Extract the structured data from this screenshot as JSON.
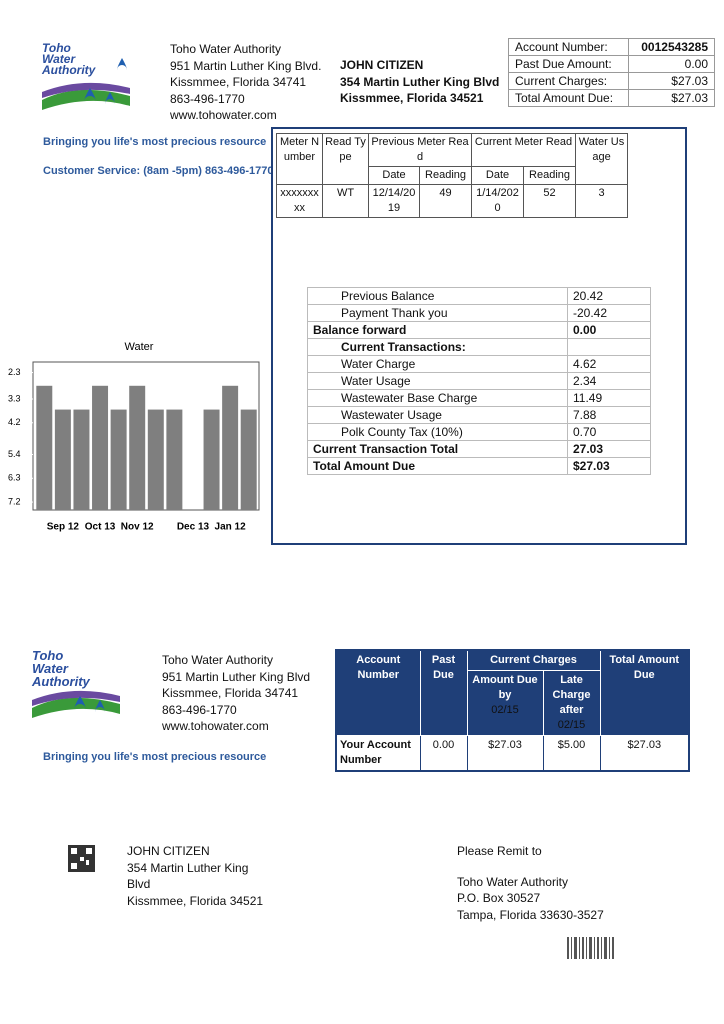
{
  "logo": [
    "Toho",
    "Water",
    "Authority"
  ],
  "company": {
    "name": "Toho Water Authority",
    "address1": "951 Martin Luther King Blvd.",
    "address2": "Kissmmee, Florida 34741",
    "phone": "863-496-1770",
    "web": "www.tohowater.com"
  },
  "customer": {
    "name": "JOHN CITIZEN",
    "address1": "354 Martin Luther King Blvd",
    "address2": "Kissmmee, Florida  34521"
  },
  "account_summary": [
    [
      "Account Number:",
      "0012543285"
    ],
    [
      "Past Due Amount:",
      "0.00"
    ],
    [
      "Current Charges:",
      "$27.03"
    ],
    [
      "Total Amount Due:",
      "$27.03"
    ]
  ],
  "tagline": "Bringing you life's most precious resource",
  "customer_service": "Customer Service: (8am -5pm) 863-496-1770",
  "meter_table": {
    "headers": {
      "meter_number": "Meter Number",
      "read_type": "Read Type",
      "previous": "Previous Meter Read",
      "current": "Current Meter Read",
      "usage": "Water Usage",
      "date": "Date",
      "reading": "Reading"
    },
    "row": [
      "xxxxxxxxx",
      "WT",
      "12/14/2019",
      "49",
      "1/14/2020",
      "52",
      "3"
    ]
  },
  "transactions": [
    {
      "label": "Previous Balance",
      "value": "20.42",
      "indent": true
    },
    {
      "label": "Payment Thank you",
      "value": "-20.42",
      "indent": true
    },
    {
      "label": "Balance forward",
      "value": "0.00",
      "bold": true
    },
    {
      "label": "Current Transactions:",
      "bold": true,
      "indent": true
    },
    {
      "label": "Water Charge",
      "value": "4.62",
      "indent": true
    },
    {
      "label": "Water Usage",
      "value": "2.34",
      "indent": true
    },
    {
      "label": "Wastewater Base Charge",
      "value": "11.49",
      "indent": true
    },
    {
      "label": "Wastewater Usage",
      "value": "7.88",
      "indent": true
    },
    {
      "label": "Polk County Tax (10%)",
      "value": "0.70",
      "indent": true
    },
    {
      "label": "Current Transaction Total",
      "value": "27.03",
      "bold": true
    },
    {
      "label": "Total Amount Due",
      "value": "$27.03",
      "bold": true
    }
  ],
  "chart_data": {
    "type": "bar",
    "title": "Water",
    "color": "#7f7f7f",
    "categories": [
      null,
      "Sep 12",
      null,
      "Oct 13",
      null,
      "Nov 12",
      null,
      null,
      "Dec 13",
      null,
      "Jan 12",
      null
    ],
    "values": [
      2.8,
      3.7,
      3.7,
      2.8,
      3.7,
      2.8,
      3.7,
      3.7,
      null,
      3.7,
      2.8,
      3.7
    ],
    "ylim": [
      7.5,
      1.9
    ],
    "yticks": [
      2.3,
      3.3,
      4.2,
      5.4,
      6.3,
      7.2
    ]
  },
  "stub": {
    "logo": [
      "Toho",
      "Water",
      "Authority"
    ],
    "company": [
      "Toho Water Authority",
      "951 Martin Luther King Blvd",
      "Kissmmee, Florida 34741",
      "863-496-1770",
      "www.tohowater.com"
    ],
    "tagline": "Bringing you life's most precious resource",
    "table": {
      "headers": {
        "account_number": "Account Number",
        "past_due": "Past Due",
        "current_charges": "Current Charges",
        "amount_due_by": "Amount Due by",
        "due_date": "02/15",
        "late_charge_after": "Late Charge after",
        "late_date": "02/15",
        "total": "Total Amount Due"
      },
      "row": [
        "Your Account Number",
        "0.00",
        "$27.03",
        "$5.00",
        "$27.03"
      ]
    }
  },
  "mailing": {
    "customer": [
      "JOHN CITIZEN",
      "354 Martin Luther King Blvd",
      "Kissmmee, Florida  34521"
    ],
    "remit_label": "Please Remit to",
    "remit": [
      "Toho Water Authority",
      "P.O. Box 30527",
      "Tampa, Florida  33630-3527"
    ]
  }
}
